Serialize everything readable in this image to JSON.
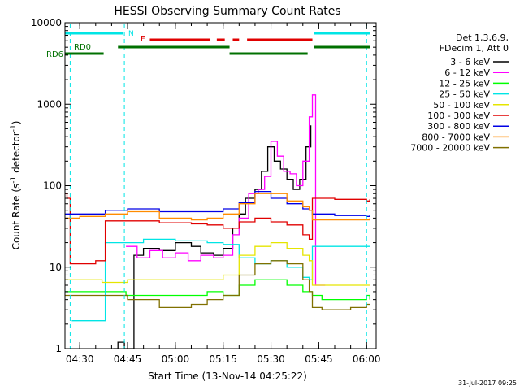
{
  "chart_data": {
    "type": "line",
    "title": "HESSI Observing Summary Count Rates",
    "xlabel": "Start Time (13-Nov-14 04:25:22)",
    "ylabel": "Count Rate (s⁻¹ detector⁻¹)",
    "ylabel_main": "Count Rate (s",
    "ylabel_sup1": "-1",
    "ylabel_mid": " detector",
    "ylabel_sup2": "-1",
    "ylabel_end": ")",
    "y_scale": "log",
    "xlim": [
      "04:25:22",
      "06:03"
    ],
    "ylim": [
      1,
      10000
    ],
    "x_ticks": [
      "04:30",
      "04:45",
      "05:00",
      "05:15",
      "05:30",
      "05:45",
      "06:00"
    ],
    "y_ticks": [
      "1",
      "10",
      "100",
      "1000",
      "10000"
    ],
    "timestamp": "31-Jul-2017 09:25",
    "legend": {
      "header": [
        "Det 1,3,6,9,",
        "FDecim 1, Att 0"
      ],
      "placement": "right"
    },
    "state_labels": {
      "N": "N",
      "F": "F",
      "RD0": "RD0",
      "RD6": "RD6"
    },
    "state_bars": [
      {
        "name": "N",
        "color": "#00e5e5",
        "segments": [
          [
            "04:25:22",
            "04:43:30"
          ],
          [
            "05:43:30",
            "06:01:00"
          ]
        ]
      },
      {
        "name": "F",
        "color": "#e00000",
        "segments": [
          [
            "04:52:00",
            "05:11:00"
          ],
          [
            "05:13:00",
            "05:15:30"
          ],
          [
            "05:18:00",
            "05:20:00"
          ],
          [
            "05:22:30",
            "05:43:00"
          ]
        ]
      },
      {
        "name": "RD0",
        "color": "#007000",
        "segments": [
          [
            "04:42:00",
            "05:17:00"
          ],
          [
            "05:43:30",
            "06:01:00"
          ]
        ]
      },
      {
        "name": "RD6",
        "color": "#007000",
        "segments": [
          [
            "04:25:22",
            "04:37:30"
          ],
          [
            "05:17:00",
            "05:41:30"
          ]
        ]
      }
    ],
    "saa_lines": [
      "04:27:00",
      "04:44:00",
      "05:43:30",
      "06:00:00"
    ],
    "series": [
      {
        "name": "3 - 6 keV",
        "color": "#000000",
        "x": [
          "04:40:30",
          "04:42:00",
          "04:44:00",
          "04:47:00",
          "04:50:00",
          "04:55:00",
          "05:00:00",
          "05:05:00",
          "05:08:00",
          "05:12:00",
          "05:15:00",
          "05:18:00",
          "05:20:00",
          "05:22:00",
          "05:25:00",
          "05:27:00",
          "05:29:00",
          "05:31:00",
          "05:33:00",
          "05:35:00",
          "05:37:00",
          "05:39:00",
          "05:41:00",
          "05:42:30"
        ],
        "values": [
          1,
          1.2,
          1,
          14,
          17,
          16,
          20,
          18,
          15,
          14,
          17,
          30,
          45,
          70,
          90,
          150,
          300,
          200,
          160,
          120,
          90,
          120,
          300,
          550
        ]
      },
      {
        "name": "6 - 12 keV",
        "color": "#ff00ff",
        "x": [
          "04:44:30",
          "04:48:00",
          "04:52:00",
          "04:56:00",
          "05:00:00",
          "05:04:00",
          "05:08:00",
          "05:12:00",
          "05:15:00",
          "05:18:00",
          "05:20:00",
          "05:23:00",
          "05:26:00",
          "05:28:00",
          "05:30:00",
          "05:32:00",
          "05:34:00",
          "05:36:00",
          "05:38:00",
          "05:40:00",
          "05:42:00",
          "05:43:00",
          "05:44:00",
          "05:47:00"
        ],
        "values": [
          18,
          13,
          16,
          13,
          15,
          12,
          14,
          13,
          14,
          25,
          40,
          80,
          90,
          130,
          350,
          230,
          150,
          140,
          100,
          200,
          700,
          1300,
          6,
          6
        ]
      },
      {
        "name": "12 - 25 keV",
        "color": "#00ff00",
        "x": [
          "04:25:22",
          "04:30:00",
          "04:35:00",
          "04:40:00",
          "04:44:30",
          "04:50:00",
          "04:55:00",
          "05:00:00",
          "05:05:00",
          "05:10:00",
          "05:15:00",
          "05:20:00",
          "05:25:00",
          "05:30:00",
          "05:35:00",
          "05:40:00",
          "05:43:00",
          "05:46:00",
          "05:50:00",
          "05:55:00",
          "06:00:00",
          "06:01:00"
        ],
        "values": [
          5,
          5,
          5,
          5,
          4.5,
          4.5,
          4.5,
          4.5,
          4.5,
          5,
          4.5,
          6,
          7,
          7,
          6,
          5,
          4.5,
          4,
          4,
          4,
          4.5,
          4
        ]
      },
      {
        "name": "25 - 50 keV",
        "color": "#00e5e5",
        "x": [
          "04:27:30",
          "04:37:00",
          "04:38:00",
          "04:44:00",
          "04:50:00",
          "05:00:00",
          "05:10:00",
          "05:15:00",
          "05:20:00",
          "05:25:00",
          "05:30:00",
          "05:35:00",
          "05:40:00",
          "05:42:00",
          "05:43:00",
          "05:46:00",
          "05:50:00",
          "05:55:00",
          "06:00:00",
          "06:01:00"
        ],
        "values": [
          2.2,
          2.2,
          20,
          20,
          22,
          21,
          20,
          19,
          13,
          11,
          12,
          10,
          7.5,
          7,
          18,
          18,
          18,
          18,
          18,
          18
        ]
      },
      {
        "name": "50 - 100 keV",
        "color": "#e5e500",
        "x": [
          "04:25:22",
          "04:30:00",
          "04:37:00",
          "04:40:00",
          "04:45:00",
          "04:55:00",
          "05:05:00",
          "05:10:00",
          "05:15:00",
          "05:20:00",
          "05:25:00",
          "05:30:00",
          "05:35:00",
          "05:40:00",
          "05:42:00",
          "05:43:00",
          "05:50:00",
          "06:00:00",
          "06:01:00"
        ],
        "values": [
          7,
          7,
          6.5,
          6.5,
          7,
          7,
          7,
          7,
          8,
          14,
          18,
          20,
          17,
          14,
          12,
          6,
          6,
          6,
          6
        ]
      },
      {
        "name": "100 - 300 keV",
        "color": "#e00000",
        "x": [
          "04:25:22",
          "04:26:00",
          "04:27:00",
          "04:30:00",
          "04:35:00",
          "04:37:00",
          "04:38:00",
          "04:45:00",
          "04:55:00",
          "05:05:00",
          "05:10:00",
          "05:15:00",
          "05:20:00",
          "05:25:00",
          "05:30:00",
          "05:35:00",
          "05:40:00",
          "05:42:00",
          "05:43:00",
          "05:50:00",
          "06:00:00",
          "06:01:00"
        ],
        "values": [
          80,
          70,
          11,
          11,
          12,
          12,
          37,
          37,
          35,
          34,
          33,
          30,
          36,
          40,
          36,
          33,
          25,
          22,
          70,
          68,
          65,
          68
        ]
      },
      {
        "name": "300 - 800 keV",
        "color": "#0000e5",
        "x": [
          "04:25:22",
          "04:30:00",
          "04:37:00",
          "04:38:00",
          "04:42:00",
          "04:45:00",
          "04:55:00",
          "05:05:00",
          "05:10:00",
          "05:15:00",
          "05:20:00",
          "05:25:00",
          "05:30:00",
          "05:35:00",
          "05:40:00",
          "05:42:00",
          "05:43:00",
          "05:50:00",
          "06:00:00",
          "06:01:00"
        ],
        "values": [
          45,
          45,
          45,
          50,
          50,
          52,
          48,
          48,
          48,
          52,
          62,
          85,
          70,
          60,
          52,
          50,
          45,
          43,
          42,
          44
        ]
      },
      {
        "name": "800 - 7000 keV",
        "color": "#ff8c00",
        "x": [
          "04:25:22",
          "04:30:00",
          "04:37:00",
          "04:38:00",
          "04:45:00",
          "04:55:00",
          "05:05:00",
          "05:10:00",
          "05:15:00",
          "05:20:00",
          "05:25:00",
          "05:30:00",
          "05:35:00",
          "05:40:00",
          "05:42:00",
          "05:43:00",
          "05:50:00",
          "06:00:00",
          "06:01:00"
        ],
        "values": [
          40,
          42,
          42,
          45,
          48,
          40,
          38,
          40,
          45,
          60,
          80,
          80,
          65,
          55,
          50,
          38,
          38,
          38,
          40
        ]
      },
      {
        "name": "7000 - 20000 keV",
        "color": "#807000",
        "x": [
          "04:25:22",
          "04:30:00",
          "04:37:00",
          "04:40:00",
          "04:45:00",
          "04:50:00",
          "04:55:00",
          "05:00:00",
          "05:05:00",
          "05:10:00",
          "05:15:00",
          "05:20:00",
          "05:25:00",
          "05:30:00",
          "05:35:00",
          "05:40:00",
          "05:42:00",
          "05:43:00",
          "05:46:00",
          "05:50:00",
          "05:55:00",
          "06:00:00",
          "06:01:00"
        ],
        "values": [
          4.5,
          4.5,
          4.5,
          4.5,
          4,
          4,
          3.2,
          3.2,
          3.5,
          4,
          4.5,
          8,
          11,
          12,
          11,
          7,
          5,
          3.2,
          3,
          3,
          3.2,
          3.5,
          3.5
        ]
      }
    ]
  }
}
